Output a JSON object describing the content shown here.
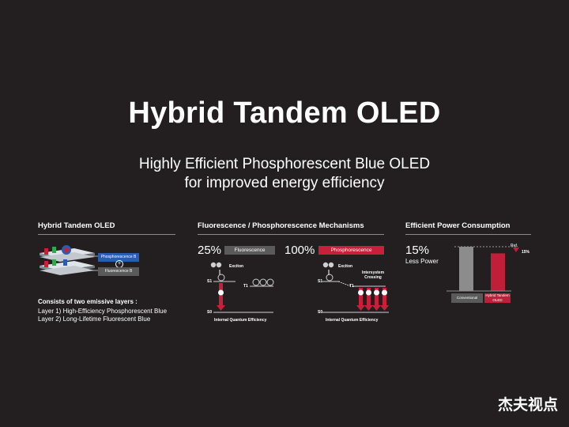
{
  "title": "Hybrid Tandem OLED",
  "subtitle": {
    "line1": "Highly Efficient Phosphorescent Blue OLED",
    "line2": "for improved energy efficiency"
  },
  "panel1": {
    "header": "Hybrid Tandem OLED",
    "tag_phos": "Phosphorescence B",
    "tag_fluo": "Fluorescence B",
    "plus": "+",
    "desc_title": "Consists of two emissive layers :",
    "desc_l1": "Layer 1) High-Efficiency Phosphorescent Blue",
    "desc_l2": "Layer 2) Long-Lifetime Fluorescent Blue"
  },
  "panel2": {
    "header": "Fluorescence / Phosphorescence Mechanisms",
    "left": {
      "pct": "25%",
      "label": "Fluorescence",
      "exciton": "Exciton",
      "s1": "S1",
      "t1": "T1",
      "s0": "S0",
      "caption": "Internal Quantum Efficiency"
    },
    "right": {
      "pct": "100%",
      "label": "Phosphorescence",
      "exciton": "Exciton",
      "isc": "Intersystem Crossing",
      "s1": "S1",
      "t1": "T1",
      "s0": "S0",
      "caption": "Internal Quantum Efficiency"
    }
  },
  "panel3": {
    "header": "Efficient Power Consumption",
    "pct": "15%",
    "less": "Less Power",
    "ref": "Ref.",
    "ref_pct": "15%",
    "bar1_label": "Conventional",
    "bar2_label": "Hybrid Tandem OLED"
  },
  "chart_data": {
    "type": "bar",
    "categories": [
      "Conventional",
      "Hybrid Tandem OLED"
    ],
    "values": [
      100,
      85
    ]
  },
  "watermark": "杰夫视点",
  "colors": {
    "background": "#231f20",
    "phosphorescence": "#c8203a",
    "fluorescence_tag": "#5a5a5a",
    "phos_tag_blue": "#2a5db0",
    "gray_bar": "#8c8c8c",
    "red_bar": "#c11f39"
  }
}
